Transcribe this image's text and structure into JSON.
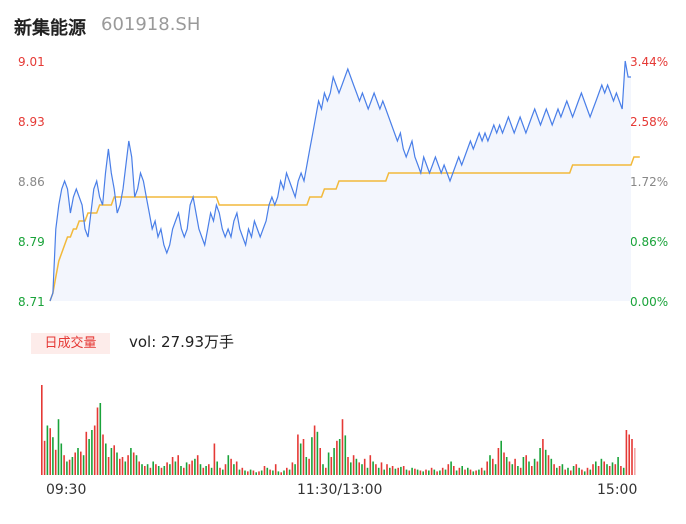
{
  "header": {
    "name": "新集能源",
    "code": "601918.SH"
  },
  "colors": {
    "up": "#e53935",
    "down": "#1aa33a",
    "neutral": "#888888",
    "price_line": "#4a7fe8",
    "avg_line": "#f2b93b"
  },
  "volume": {
    "tab_label": "日成交量",
    "summary": "vol: 27.93万手"
  },
  "chart_data": [
    {
      "type": "line",
      "y_ticks": [
        "9.01",
        "8.93",
        "8.86",
        "8.79",
        "8.71"
      ],
      "y_tick_values": [
        9.01,
        8.93,
        8.86,
        8.79,
        8.71
      ],
      "pct_ticks": [
        "3.44%",
        "2.58%",
        "1.72%",
        "0.86%",
        "0.00%"
      ],
      "ylim": [
        8.71,
        9.01
      ],
      "x_ticks": [
        "09:30",
        "11:30/13:00",
        "15:00"
      ],
      "series": [
        {
          "key": "price",
          "color": "#4a7fe8",
          "values": [
            8.71,
            8.72,
            8.8,
            8.83,
            8.85,
            8.86,
            8.85,
            8.82,
            8.84,
            8.85,
            8.84,
            8.83,
            8.8,
            8.79,
            8.82,
            8.85,
            8.86,
            8.84,
            8.83,
            8.87,
            8.9,
            8.87,
            8.85,
            8.82,
            8.83,
            8.85,
            8.88,
            8.91,
            8.89,
            8.84,
            8.85,
            8.87,
            8.86,
            8.84,
            8.82,
            8.8,
            8.81,
            8.79,
            8.8,
            8.78,
            8.77,
            8.78,
            8.8,
            8.81,
            8.82,
            8.8,
            8.79,
            8.8,
            8.83,
            8.84,
            8.82,
            8.8,
            8.79,
            8.78,
            8.8,
            8.82,
            8.81,
            8.83,
            8.82,
            8.8,
            8.79,
            8.8,
            8.79,
            8.81,
            8.82,
            8.8,
            8.79,
            8.78,
            8.8,
            8.79,
            8.81,
            8.8,
            8.79,
            8.8,
            8.81,
            8.83,
            8.84,
            8.83,
            8.84,
            8.86,
            8.85,
            8.87,
            8.86,
            8.85,
            8.84,
            8.86,
            8.87,
            8.86,
            8.88,
            8.9,
            8.92,
            8.94,
            8.96,
            8.95,
            8.97,
            8.96,
            8.97,
            8.99,
            8.98,
            8.97,
            8.98,
            8.99,
            9.0,
            8.99,
            8.98,
            8.97,
            8.96,
            8.97,
            8.96,
            8.95,
            8.96,
            8.97,
            8.96,
            8.95,
            8.96,
            8.95,
            8.94,
            8.93,
            8.92,
            8.91,
            8.92,
            8.9,
            8.89,
            8.9,
            8.91,
            8.89,
            8.88,
            8.87,
            8.89,
            8.88,
            8.87,
            8.88,
            8.89,
            8.88,
            8.87,
            8.88,
            8.87,
            8.86,
            8.87,
            8.88,
            8.89,
            8.88,
            8.89,
            8.9,
            8.91,
            8.9,
            8.91,
            8.92,
            8.91,
            8.92,
            8.91,
            8.92,
            8.93,
            8.92,
            8.93,
            8.92,
            8.93,
            8.94,
            8.93,
            8.92,
            8.93,
            8.94,
            8.93,
            8.92,
            8.93,
            8.94,
            8.95,
            8.94,
            8.93,
            8.94,
            8.95,
            8.94,
            8.93,
            8.94,
            8.95,
            8.94,
            8.95,
            8.96,
            8.95,
            8.94,
            8.95,
            8.96,
            8.97,
            8.96,
            8.95,
            8.94,
            8.95,
            8.96,
            8.97,
            8.98,
            8.97,
            8.98,
            8.97,
            8.96,
            8.97,
            8.96,
            8.95,
            9.01,
            8.99,
            8.99
          ]
        },
        {
          "key": "avg",
          "color": "#f2b93b",
          "values": [
            8.71,
            8.72,
            8.74,
            8.76,
            8.77,
            8.78,
            8.79,
            8.79,
            8.8,
            8.8,
            8.81,
            8.81,
            8.81,
            8.82,
            8.82,
            8.82,
            8.82,
            8.83,
            8.83,
            8.83,
            8.83,
            8.83,
            8.84,
            8.84,
            8.84,
            8.84,
            8.84,
            8.84,
            8.84,
            8.84,
            8.84,
            8.84,
            8.84,
            8.84,
            8.84,
            8.84,
            8.84,
            8.84,
            8.84,
            8.84,
            8.84,
            8.84,
            8.84,
            8.84,
            8.84,
            8.84,
            8.84,
            8.84,
            8.84,
            8.84,
            8.84,
            8.84,
            8.84,
            8.84,
            8.84,
            8.84,
            8.84,
            8.84,
            8.83,
            8.83,
            8.83,
            8.83,
            8.83,
            8.83,
            8.83,
            8.83,
            8.83,
            8.83,
            8.83,
            8.83,
            8.83,
            8.83,
            8.83,
            8.83,
            8.83,
            8.83,
            8.83,
            8.83,
            8.83,
            8.83,
            8.83,
            8.83,
            8.83,
            8.83,
            8.83,
            8.83,
            8.83,
            8.83,
            8.83,
            8.84,
            8.84,
            8.84,
            8.84,
            8.84,
            8.85,
            8.85,
            8.85,
            8.85,
            8.85,
            8.86,
            8.86,
            8.86,
            8.86,
            8.86,
            8.86,
            8.86,
            8.86,
            8.86,
            8.86,
            8.86,
            8.86,
            8.86,
            8.86,
            8.86,
            8.86,
            8.86,
            8.87,
            8.87,
            8.87,
            8.87,
            8.87,
            8.87,
            8.87,
            8.87,
            8.87,
            8.87,
            8.87,
            8.87,
            8.87,
            8.87,
            8.87,
            8.87,
            8.87,
            8.87,
            8.87,
            8.87,
            8.87,
            8.87,
            8.87,
            8.87,
            8.87,
            8.87,
            8.87,
            8.87,
            8.87,
            8.87,
            8.87,
            8.87,
            8.87,
            8.87,
            8.87,
            8.87,
            8.87,
            8.87,
            8.87,
            8.87,
            8.87,
            8.87,
            8.87,
            8.87,
            8.87,
            8.87,
            8.87,
            8.87,
            8.87,
            8.87,
            8.87,
            8.87,
            8.87,
            8.87,
            8.87,
            8.87,
            8.87,
            8.87,
            8.87,
            8.87,
            8.87,
            8.87,
            8.87,
            8.88,
            8.88,
            8.88,
            8.88,
            8.88,
            8.88,
            8.88,
            8.88,
            8.88,
            8.88,
            8.88,
            8.88,
            8.88,
            8.88,
            8.88,
            8.88,
            8.88,
            8.88,
            8.88,
            8.88,
            8.88,
            8.89,
            8.89,
            8.89
          ]
        }
      ]
    },
    {
      "type": "bar",
      "x_ticks": [
        "09:30",
        "11:30/13:00",
        "15:00"
      ],
      "ylim": [
        0,
        100
      ],
      "volumes": [
        100,
        38,
        55,
        52,
        42,
        28,
        62,
        35,
        22,
        15,
        17,
        20,
        25,
        30,
        26,
        22,
        48,
        40,
        50,
        55,
        75,
        80,
        45,
        35,
        20,
        30,
        33,
        25,
        18,
        20,
        15,
        22,
        30,
        25,
        22,
        15,
        12,
        10,
        12,
        8,
        15,
        12,
        10,
        8,
        10,
        14,
        12,
        20,
        15,
        22,
        10,
        8,
        14,
        12,
        16,
        18,
        22,
        12,
        8,
        10,
        12,
        8,
        35,
        15,
        8,
        6,
        12,
        22,
        18,
        12,
        15,
        6,
        8,
        5,
        4,
        6,
        5,
        3,
        4,
        5,
        10,
        8,
        6,
        5,
        12,
        4,
        3,
        5,
        8,
        6,
        14,
        12,
        45,
        35,
        40,
        20,
        18,
        42,
        55,
        48,
        30,
        12,
        8,
        25,
        20,
        30,
        38,
        40,
        62,
        44,
        20,
        14,
        22,
        18,
        14,
        12,
        18,
        8,
        22,
        15,
        12,
        8,
        14,
        6,
        12,
        8,
        10,
        7,
        8,
        9,
        10,
        6,
        5,
        8,
        7,
        6,
        5,
        4,
        6,
        5,
        8,
        6,
        4,
        5,
        8,
        6,
        12,
        15,
        10,
        5,
        8,
        10,
        6,
        8,
        6,
        4,
        5,
        6,
        8,
        5,
        15,
        22,
        18,
        12,
        30,
        38,
        25,
        20,
        15,
        12,
        18,
        10,
        8,
        20,
        22,
        15,
        10,
        18,
        15,
        30,
        40,
        28,
        22,
        18,
        12,
        8,
        10,
        12,
        6,
        8,
        5,
        10,
        12,
        8,
        6,
        4,
        8,
        6,
        12,
        15,
        10,
        18,
        15,
        12,
        10,
        14,
        12,
        20,
        10,
        8,
        50,
        45,
        40,
        30
      ],
      "directions": [
        "up",
        "up",
        "down",
        "up",
        "down",
        "up",
        "down",
        "down",
        "up",
        "down",
        "up",
        "down",
        "up",
        "down",
        "up",
        "down",
        "up",
        "down",
        "down",
        "up",
        "up",
        "down",
        "up",
        "down",
        "up",
        "down",
        "up",
        "down",
        "up",
        "up",
        "down",
        "up",
        "down",
        "up",
        "down",
        "up",
        "down",
        "up",
        "down",
        "up",
        "down",
        "up",
        "down",
        "up",
        "down",
        "up",
        "down",
        "up",
        "down",
        "up",
        "down",
        "up",
        "down",
        "up",
        "up",
        "down",
        "up",
        "down",
        "up",
        "down",
        "up",
        "down",
        "up",
        "down",
        "up",
        "down",
        "up",
        "down",
        "up",
        "down",
        "up",
        "down",
        "up",
        "down",
        "up",
        "down",
        "up",
        "down",
        "up",
        "down",
        "up",
        "down",
        "up",
        "down",
        "up",
        "down",
        "up",
        "down",
        "up",
        "down",
        "up",
        "down",
        "up",
        "down",
        "up",
        "down",
        "up",
        "down",
        "up",
        "down",
        "up",
        "down",
        "up",
        "down",
        "up",
        "down",
        "up",
        "down",
        "up",
        "down",
        "up",
        "down",
        "up",
        "down",
        "up",
        "down",
        "up",
        "down",
        "up",
        "down",
        "up",
        "down",
        "up",
        "down",
        "up",
        "down",
        "up",
        "down",
        "up",
        "down",
        "up",
        "down",
        "up",
        "down",
        "up",
        "down",
        "up",
        "down",
        "up",
        "down",
        "up",
        "down",
        "up",
        "down",
        "up",
        "down",
        "up",
        "down",
        "up",
        "down",
        "up",
        "down",
        "up",
        "down",
        "up",
        "down",
        "up",
        "down",
        "up",
        "down",
        "up",
        "down",
        "up",
        "down",
        "up",
        "down",
        "up",
        "down",
        "up",
        "down",
        "up",
        "down",
        "up",
        "down",
        "up",
        "down",
        "up",
        "down",
        "up",
        "down",
        "up",
        "down",
        "up",
        "down",
        "up",
        "down",
        "up",
        "down",
        "up",
        "down",
        "up",
        "down",
        "up",
        "down",
        "up",
        "down",
        "up",
        "down",
        "up",
        "down",
        "up",
        "down",
        "up",
        "down",
        "up",
        "down",
        "up",
        "down",
        "up",
        "down",
        "up",
        "up",
        "up",
        "neutral"
      ]
    }
  ]
}
